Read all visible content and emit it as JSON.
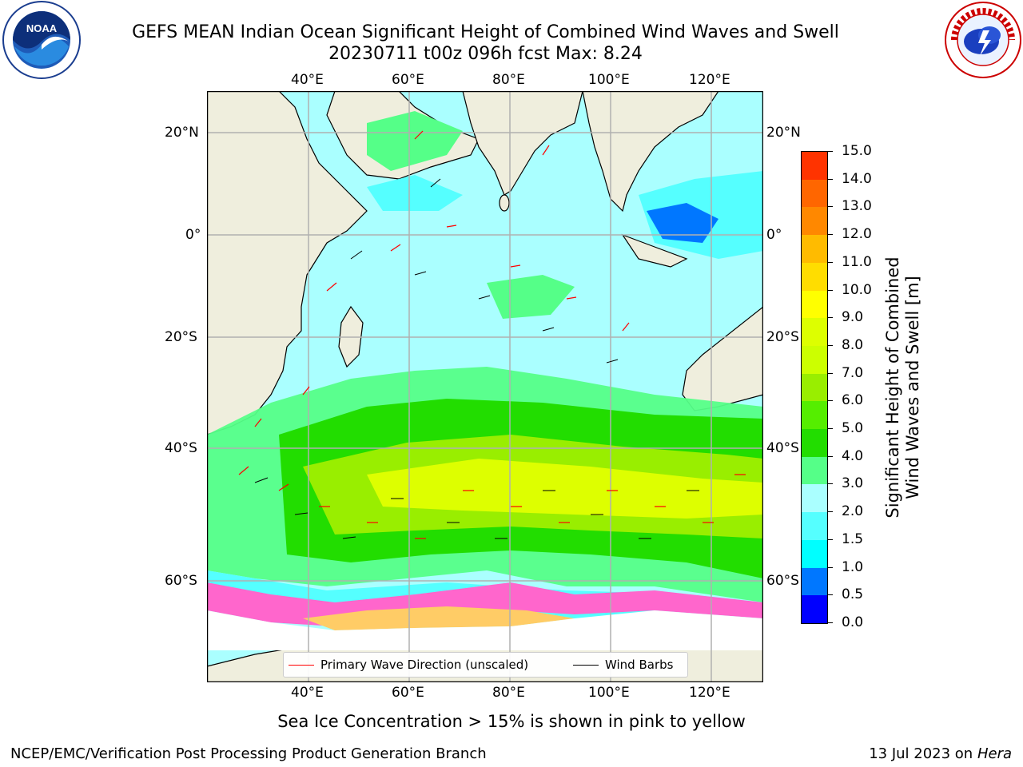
{
  "header": {
    "title_line1": "GEFS MEAN Indian Ocean Significant Height of Combined Wind Waves and Swell",
    "title_line2": "20230711 t00z 096h fcst   Max: 8.24"
  },
  "logos": {
    "noaa_text": "NOAA",
    "noaa_ring_text": "NATIONAL OCEANIC AND ATMOSPHERIC ADMINISTRATION · U.S. DEPARTMENT OF COMMERCE",
    "nws_ring_text": "NATIONAL WEATHER SERVICE"
  },
  "map": {
    "top_lon_labels": [
      "40°E",
      "60°E",
      "80°E",
      "100°E",
      "120°E"
    ],
    "bottom_lon_labels": [
      "40°E",
      "60°E",
      "80°E",
      "100°E",
      "120°E"
    ],
    "left_lat_labels": [
      "20°N",
      "0°",
      "20°S",
      "40°S",
      "60°S"
    ],
    "right_lat_labels": [
      "20°N",
      "0°",
      "20°S",
      "40°S",
      "60°S"
    ],
    "land_color": "#efeedd",
    "ocean_colors": {
      "low": "#aaffff",
      "mid": "#55ff88",
      "high": "#22dd00",
      "peak": "#ddff00"
    }
  },
  "legend": {
    "primary_wave_label": "Primary Wave Direction (unscaled)",
    "wind_barbs_label": "Wind Barbs",
    "primary_wave_color": "#ff0000",
    "wind_barbs_color": "#000000"
  },
  "colorbar": {
    "title_line1": "Significant Height of Combined",
    "title_line2": "Wind Waves and Swell [m]",
    "ticks": [
      "15.0",
      "14.0",
      "13.0",
      "12.0",
      "11.0",
      "10.0",
      "9.0",
      "8.0",
      "7.0",
      "6.0",
      "5.0",
      "4.0",
      "3.0",
      "2.0",
      "1.5",
      "1.0",
      "0.5",
      "0.0"
    ],
    "colors": [
      "#0000ff",
      "#0077ff",
      "#00ffff",
      "#55ffff",
      "#aaffff",
      "#55ff88",
      "#22dd00",
      "#55ee00",
      "#99ee00",
      "#ccff00",
      "#ddff00",
      "#ffff00",
      "#ffdd00",
      "#ffbb00",
      "#ff8800",
      "#ff6600",
      "#ff3300",
      "#ff0000"
    ]
  },
  "sea_ice_note": "Sea Ice Concentration > 15% is shown in pink to yellow",
  "footer": {
    "left": "NCEP/EMC/Verification Post Processing Product Generation Branch",
    "right_prefix": "13 Jul 2023 on ",
    "right_host": "Hera"
  }
}
